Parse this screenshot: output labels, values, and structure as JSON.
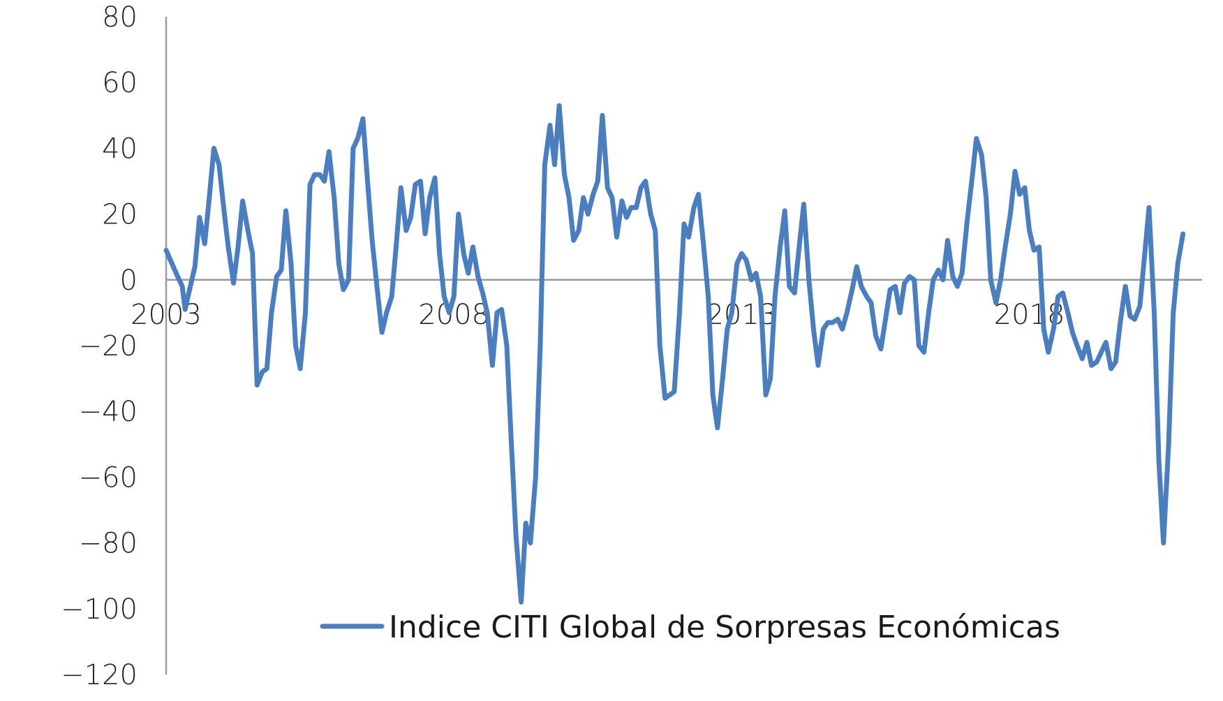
{
  "chart_data": {
    "type": "line",
    "title": "",
    "xlabel": "",
    "ylabel": "",
    "ylim": [
      -120,
      80
    ],
    "yticks": [
      80,
      60,
      40,
      20,
      0,
      -20,
      -40,
      -60,
      -80,
      -100,
      -120
    ],
    "xlim": [
      2003.0,
      2020.88
    ],
    "xticks": [
      2003,
      2008,
      2013,
      2018
    ],
    "x_tick_labels": [
      "2003",
      "2008",
      "2013",
      "2018"
    ],
    "grid": false,
    "legend_position": "bottom",
    "series_color": "#4a7ebf",
    "series": [
      {
        "name": "Indice CITI Global de Sorpresas Económicas",
        "points": [
          [
            2003.0,
            9
          ],
          [
            2003.1,
            5
          ],
          [
            2003.2,
            1
          ],
          [
            2003.28,
            -2
          ],
          [
            2003.33,
            -9
          ],
          [
            2003.42,
            -2
          ],
          [
            2003.5,
            4
          ],
          [
            2003.58,
            19
          ],
          [
            2003.67,
            11
          ],
          [
            2003.75,
            25
          ],
          [
            2003.83,
            40
          ],
          [
            2003.92,
            35
          ],
          [
            2004.0,
            22
          ],
          [
            2004.08,
            10
          ],
          [
            2004.17,
            -1
          ],
          [
            2004.25,
            10
          ],
          [
            2004.33,
            24
          ],
          [
            2004.42,
            15
          ],
          [
            2004.5,
            8
          ],
          [
            2004.58,
            -32
          ],
          [
            2004.67,
            -28
          ],
          [
            2004.75,
            -27
          ],
          [
            2004.83,
            -10
          ],
          [
            2004.92,
            1
          ],
          [
            2005.0,
            3
          ],
          [
            2005.08,
            21
          ],
          [
            2005.17,
            5
          ],
          [
            2005.25,
            -20
          ],
          [
            2005.33,
            -27
          ],
          [
            2005.42,
            -10
          ],
          [
            2005.5,
            29
          ],
          [
            2005.58,
            32
          ],
          [
            2005.67,
            32
          ],
          [
            2005.75,
            30
          ],
          [
            2005.83,
            39
          ],
          [
            2005.92,
            25
          ],
          [
            2006.0,
            5
          ],
          [
            2006.08,
            -3
          ],
          [
            2006.17,
            0
          ],
          [
            2006.25,
            40
          ],
          [
            2006.33,
            43
          ],
          [
            2006.42,
            49
          ],
          [
            2006.5,
            30
          ],
          [
            2006.58,
            12
          ],
          [
            2006.67,
            -3
          ],
          [
            2006.75,
            -16
          ],
          [
            2006.83,
            -10
          ],
          [
            2006.92,
            -5
          ],
          [
            2007.0,
            11
          ],
          [
            2007.08,
            28
          ],
          [
            2007.17,
            15
          ],
          [
            2007.25,
            19
          ],
          [
            2007.33,
            29
          ],
          [
            2007.42,
            30
          ],
          [
            2007.5,
            14
          ],
          [
            2007.58,
            25
          ],
          [
            2007.67,
            31
          ],
          [
            2007.75,
            8
          ],
          [
            2007.83,
            -5
          ],
          [
            2007.92,
            -10
          ],
          [
            2008.0,
            -5
          ],
          [
            2008.08,
            20
          ],
          [
            2008.17,
            8
          ],
          [
            2008.25,
            2
          ],
          [
            2008.33,
            10
          ],
          [
            2008.42,
            1
          ],
          [
            2008.5,
            -4
          ],
          [
            2008.58,
            -10
          ],
          [
            2008.67,
            -26
          ],
          [
            2008.75,
            -10
          ],
          [
            2008.83,
            -9
          ],
          [
            2008.92,
            -20
          ],
          [
            2009.0,
            -50
          ],
          [
            2009.08,
            -78
          ],
          [
            2009.17,
            -98
          ],
          [
            2009.25,
            -74
          ],
          [
            2009.33,
            -80
          ],
          [
            2009.42,
            -60
          ],
          [
            2009.5,
            -20
          ],
          [
            2009.58,
            35
          ],
          [
            2009.67,
            47
          ],
          [
            2009.75,
            35
          ],
          [
            2009.83,
            53
          ],
          [
            2009.92,
            32
          ],
          [
            2010.0,
            25
          ],
          [
            2010.08,
            12
          ],
          [
            2010.17,
            15
          ],
          [
            2010.25,
            25
          ],
          [
            2010.33,
            20
          ],
          [
            2010.42,
            26
          ],
          [
            2010.5,
            30
          ],
          [
            2010.58,
            50
          ],
          [
            2010.67,
            28
          ],
          [
            2010.75,
            25
          ],
          [
            2010.83,
            13
          ],
          [
            2010.92,
            24
          ],
          [
            2011.0,
            19
          ],
          [
            2011.08,
            22
          ],
          [
            2011.17,
            22
          ],
          [
            2011.25,
            28
          ],
          [
            2011.33,
            30
          ],
          [
            2011.42,
            20
          ],
          [
            2011.5,
            15
          ],
          [
            2011.58,
            -20
          ],
          [
            2011.67,
            -36
          ],
          [
            2011.75,
            -35
          ],
          [
            2011.83,
            -34
          ],
          [
            2011.92,
            -10
          ],
          [
            2012.0,
            17
          ],
          [
            2012.08,
            13
          ],
          [
            2012.17,
            22
          ],
          [
            2012.25,
            26
          ],
          [
            2012.33,
            12
          ],
          [
            2012.42,
            -5
          ],
          [
            2012.5,
            -35
          ],
          [
            2012.58,
            -45
          ],
          [
            2012.67,
            -30
          ],
          [
            2012.75,
            -15
          ],
          [
            2012.83,
            -10
          ],
          [
            2012.92,
            5
          ],
          [
            2013.0,
            8
          ],
          [
            2013.08,
            6
          ],
          [
            2013.17,
            0
          ],
          [
            2013.25,
            2
          ],
          [
            2013.33,
            -5
          ],
          [
            2013.42,
            -35
          ],
          [
            2013.5,
            -30
          ],
          [
            2013.58,
            -5
          ],
          [
            2013.67,
            10
          ],
          [
            2013.75,
            21
          ],
          [
            2013.83,
            -2
          ],
          [
            2013.92,
            -4
          ],
          [
            2014.0,
            10
          ],
          [
            2014.08,
            23
          ],
          [
            2014.17,
            0
          ],
          [
            2014.25,
            -15
          ],
          [
            2014.33,
            -26
          ],
          [
            2014.42,
            -15
          ],
          [
            2014.5,
            -13
          ],
          [
            2014.58,
            -13
          ],
          [
            2014.67,
            -12
          ],
          [
            2014.75,
            -15
          ],
          [
            2014.83,
            -10
          ],
          [
            2014.92,
            -3
          ],
          [
            2015.0,
            4
          ],
          [
            2015.08,
            -2
          ],
          [
            2015.17,
            -5
          ],
          [
            2015.25,
            -7
          ],
          [
            2015.33,
            -17
          ],
          [
            2015.42,
            -21
          ],
          [
            2015.5,
            -12
          ],
          [
            2015.58,
            -3
          ],
          [
            2015.67,
            -2
          ],
          [
            2015.75,
            -10
          ],
          [
            2015.83,
            -1
          ],
          [
            2015.92,
            1
          ],
          [
            2016.0,
            0
          ],
          [
            2016.08,
            -20
          ],
          [
            2016.17,
            -22
          ],
          [
            2016.25,
            -10
          ],
          [
            2016.33,
            0
          ],
          [
            2016.42,
            3
          ],
          [
            2016.5,
            0
          ],
          [
            2016.58,
            12
          ],
          [
            2016.67,
            1
          ],
          [
            2016.75,
            -2
          ],
          [
            2016.83,
            2
          ],
          [
            2016.92,
            18
          ],
          [
            2017.0,
            30
          ],
          [
            2017.08,
            43
          ],
          [
            2017.17,
            38
          ],
          [
            2017.25,
            25
          ],
          [
            2017.33,
            0
          ],
          [
            2017.42,
            -7
          ],
          [
            2017.5,
            0
          ],
          [
            2017.58,
            10
          ],
          [
            2017.67,
            20
          ],
          [
            2017.75,
            33
          ],
          [
            2017.83,
            26
          ],
          [
            2017.92,
            28
          ],
          [
            2018.0,
            15
          ],
          [
            2018.08,
            9
          ],
          [
            2018.17,
            10
          ],
          [
            2018.25,
            -15
          ],
          [
            2018.33,
            -22
          ],
          [
            2018.42,
            -15
          ],
          [
            2018.5,
            -5
          ],
          [
            2018.58,
            -4
          ],
          [
            2018.67,
            -10
          ],
          [
            2018.75,
            -16
          ],
          [
            2018.83,
            -20
          ],
          [
            2018.92,
            -24
          ],
          [
            2019.0,
            -19
          ],
          [
            2019.08,
            -26
          ],
          [
            2019.17,
            -25
          ],
          [
            2019.25,
            -22
          ],
          [
            2019.33,
            -19
          ],
          [
            2019.42,
            -27
          ],
          [
            2019.5,
            -25
          ],
          [
            2019.58,
            -13
          ],
          [
            2019.67,
            -2
          ],
          [
            2019.75,
            -11
          ],
          [
            2019.83,
            -12
          ],
          [
            2019.92,
            -8
          ],
          [
            2020.0,
            7
          ],
          [
            2020.08,
            22
          ],
          [
            2020.17,
            -10
          ],
          [
            2020.25,
            -55
          ],
          [
            2020.33,
            -80
          ],
          [
            2020.42,
            -50
          ],
          [
            2020.5,
            -10
          ],
          [
            2020.58,
            5
          ],
          [
            2020.67,
            14
          ]
        ]
      }
    ]
  }
}
